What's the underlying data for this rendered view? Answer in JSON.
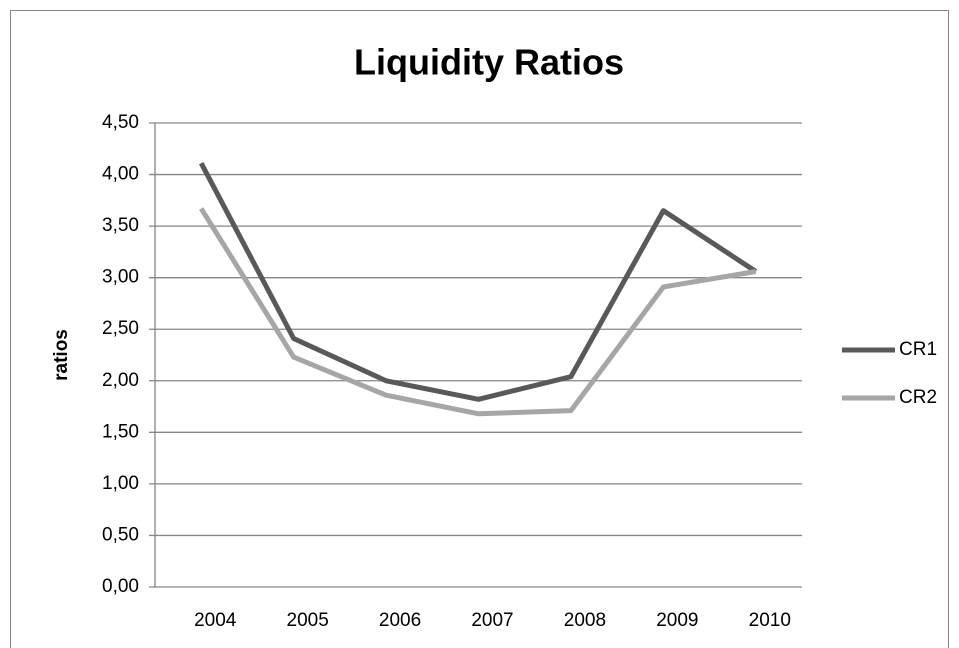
{
  "chart_data": {
    "type": "line",
    "title": "Liquidity Ratios",
    "y_label": "ratios",
    "categories": [
      "2004",
      "2005",
      "2006",
      "2007",
      "2008",
      "2009",
      "2010"
    ],
    "series": [
      {
        "name": "CR1",
        "color": "#595959",
        "values": [
          4.11,
          2.41,
          2.0,
          1.82,
          2.04,
          3.65,
          3.06
        ]
      },
      {
        "name": "CR2",
        "color": "#a6a6a6",
        "values": [
          3.67,
          2.23,
          1.86,
          1.68,
          1.71,
          2.91,
          3.06
        ]
      }
    ],
    "ylim": [
      0,
      4.5
    ],
    "yticks": [
      {
        "value": 0,
        "label": "0,00"
      },
      {
        "value": 0.5,
        "label": "0,50"
      },
      {
        "value": 1,
        "label": "1,00"
      },
      {
        "value": 1.5,
        "label": "1,50"
      },
      {
        "value": 2,
        "label": "2,00"
      },
      {
        "value": 2.5,
        "label": "2,50"
      },
      {
        "value": 3,
        "label": "3,00"
      },
      {
        "value": 3.5,
        "label": "3,50"
      },
      {
        "value": 4,
        "label": "4,00"
      },
      {
        "value": 4.5,
        "label": "4,50"
      }
    ],
    "grid": true,
    "legend": "right"
  }
}
